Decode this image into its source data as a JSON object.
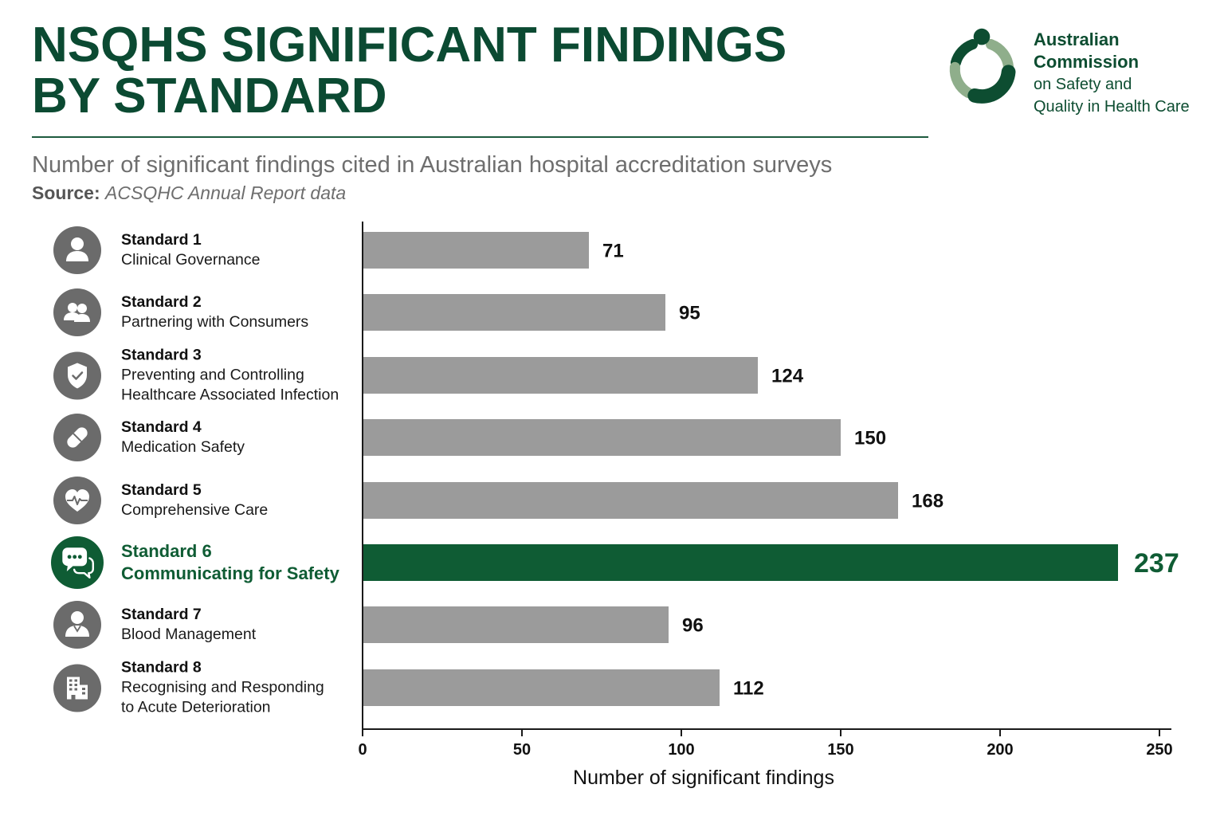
{
  "logo": {
    "icon": "commission-ring-logo",
    "name_lines": [
      "Australian",
      "Commission"
    ],
    "tagline_lines": [
      "on Safety and",
      "Quality in Health Care"
    ]
  },
  "colors": {
    "title": "#0b4a32",
    "accent_green": "#0f5c34",
    "bar_gray": "#9b9b9b",
    "icon_gray": "#6b6b6b",
    "logo_dark": "#0d4d31",
    "logo_light": "#8fae8b",
    "text_gray": "#6e6e6e"
  },
  "chart_data": {
    "type": "bar",
    "orientation": "horizontal",
    "title_lines": [
      "NSQHS SIGNIFICANT FINDINGS",
      "BY STANDARD"
    ],
    "subtitle": "Number of significant findings cited in Australian hospital accreditation surveys",
    "source_label": "Source:",
    "source_text": "ACSQHC Annual Report data",
    "categories": [
      "Standard 1",
      "Standard 2",
      "Standard 3",
      "Standard 4",
      "Standard 5",
      "Standard 6",
      "Standard 7",
      "Standard 8"
    ],
    "category_descriptions": [
      [
        "Clinical Governance"
      ],
      [
        "Partnering with Consumers"
      ],
      [
        "Preventing and Controlling",
        "Healthcare Associated Infection"
      ],
      [
        "Medication Safety"
      ],
      [
        "Comprehensive Care"
      ],
      [
        "Communicating for Safety"
      ],
      [
        "Blood Management"
      ],
      [
        "Recognising and Responding",
        "to Acute Deterioration"
      ]
    ],
    "category_icons": [
      "person-icon",
      "people-icon",
      "shield-check-icon",
      "pill-icon",
      "heart-pulse-icon",
      "chat-bubbles-icon",
      "clinician-icon",
      "building-icon"
    ],
    "values": [
      71,
      95,
      124,
      150,
      168,
      237,
      96,
      112
    ],
    "highlighted_index": 5,
    "xlabel": "Number of significant findings",
    "xlim": [
      0,
      250
    ],
    "xticks": [
      0,
      50,
      100,
      150,
      200,
      250
    ],
    "data_labels": true,
    "grid": false,
    "legend": "none"
  }
}
